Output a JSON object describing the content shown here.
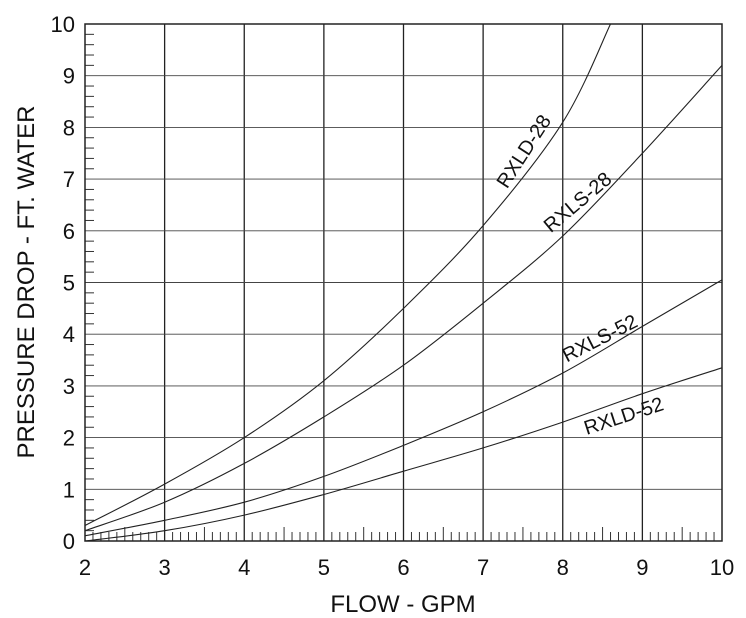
{
  "chart_data": {
    "type": "line",
    "title": "",
    "xlabel": "FLOW - GPM",
    "ylabel": "PRESSURE DROP - FT. WATER",
    "xlim": [
      2,
      10
    ],
    "ylim": [
      0,
      10
    ],
    "x_ticks": [
      "2",
      "3",
      "4",
      "5",
      "6",
      "7",
      "8",
      "9",
      "10"
    ],
    "y_ticks": [
      "0",
      "1",
      "2",
      "3",
      "4",
      "5",
      "6",
      "7",
      "8",
      "9",
      "10"
    ],
    "grid": true,
    "series": [
      {
        "name": "RXLD-28",
        "x": [
          2,
          3,
          4,
          5,
          6,
          7,
          8,
          8.6
        ],
        "y": [
          0.3,
          1.1,
          2.0,
          3.1,
          4.5,
          6.1,
          8.1,
          10.0
        ]
      },
      {
        "name": "RXLS-28",
        "x": [
          2,
          3,
          4,
          5,
          6,
          7,
          8,
          9,
          10
        ],
        "y": [
          0.2,
          0.75,
          1.5,
          2.4,
          3.4,
          4.6,
          5.9,
          7.5,
          9.2
        ]
      },
      {
        "name": "RXLS-52",
        "x": [
          2,
          3,
          4,
          5,
          6,
          7,
          8,
          9,
          10
        ],
        "y": [
          0.1,
          0.4,
          0.75,
          1.25,
          1.85,
          2.5,
          3.25,
          4.15,
          5.05
        ]
      },
      {
        "name": "RXLD-52",
        "x": [
          2,
          3,
          4,
          5,
          6,
          7,
          8,
          9,
          10
        ],
        "y": [
          0.0,
          0.2,
          0.5,
          0.9,
          1.35,
          1.8,
          2.3,
          2.85,
          3.35
        ]
      }
    ]
  }
}
